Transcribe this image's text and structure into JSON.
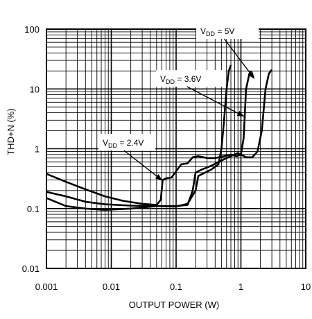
{
  "chart_data": {
    "type": "line",
    "xlabel": "OUTPUT POWER (W)",
    "ylabel": "THD+N (%)",
    "xscale": "log",
    "yscale": "log",
    "xlim": [
      0.001,
      10
    ],
    "ylim": [
      0.01,
      100
    ],
    "grid": true,
    "x_ticks": [
      {
        "value": 0.001,
        "label": "0.001"
      },
      {
        "value": 0.01,
        "label": "0.01"
      },
      {
        "value": 0.1,
        "label": "0.1"
      },
      {
        "value": 1,
        "label": "1"
      },
      {
        "value": 10,
        "label": "10"
      }
    ],
    "y_ticks": [
      {
        "value": 0.01,
        "label": "0.01"
      },
      {
        "value": 0.1,
        "label": "0.1"
      },
      {
        "value": 1,
        "label": "1"
      },
      {
        "value": 10,
        "label": "10"
      },
      {
        "value": 100,
        "label": "100"
      }
    ],
    "series": [
      {
        "points": [
          [
            0.001,
            0.38
          ],
          [
            0.002,
            0.28
          ],
          [
            0.004,
            0.21
          ],
          [
            0.008,
            0.16
          ],
          [
            0.015,
            0.135
          ],
          [
            0.03,
            0.12
          ],
          [
            0.05,
            0.115
          ],
          [
            0.058,
            0.14
          ],
          [
            0.062,
            0.3
          ],
          [
            0.07,
            0.32
          ],
          [
            0.085,
            0.33
          ],
          [
            0.1,
            0.42
          ],
          [
            0.12,
            0.55
          ],
          [
            0.15,
            0.57
          ],
          [
            0.18,
            0.72
          ],
          [
            0.22,
            0.75
          ],
          [
            0.3,
            0.7
          ],
          [
            0.4,
            0.7
          ],
          [
            0.55,
            0.75
          ],
          [
            0.7,
            0.8
          ],
          [
            0.85,
            0.75
          ],
          [
            1.0,
            0.8
          ],
          [
            1.1,
            1.5
          ],
          [
            1.2,
            10
          ],
          [
            1.35,
            18
          ],
          [
            1.45,
            20
          ]
        ]
      },
      {
        "points": [
          [
            0.001,
            0.19
          ],
          [
            0.002,
            0.16
          ],
          [
            0.004,
            0.13
          ],
          [
            0.008,
            0.118
          ],
          [
            0.02,
            0.112
          ],
          [
            0.05,
            0.11
          ],
          [
            0.1,
            0.108
          ],
          [
            0.15,
            0.12
          ],
          [
            0.2,
            0.2
          ],
          [
            0.22,
            0.35
          ],
          [
            0.28,
            0.4
          ],
          [
            0.35,
            0.45
          ],
          [
            0.45,
            0.55
          ],
          [
            0.5,
            1.0
          ],
          [
            0.55,
            3.0
          ],
          [
            0.6,
            10
          ],
          [
            0.65,
            20
          ],
          [
            0.7,
            25
          ]
        ]
      },
      {
        "points": [
          [
            0.001,
            0.15
          ],
          [
            0.002,
            0.11
          ],
          [
            0.004,
            0.1
          ],
          [
            0.008,
            0.095
          ],
          [
            0.02,
            0.1
          ],
          [
            0.05,
            0.11
          ],
          [
            0.1,
            0.11
          ],
          [
            0.15,
            0.115
          ],
          [
            0.18,
            0.2
          ],
          [
            0.2,
            0.4
          ],
          [
            0.25,
            0.45
          ],
          [
            0.35,
            0.52
          ],
          [
            0.45,
            0.6
          ],
          [
            0.6,
            0.7
          ],
          [
            0.9,
            0.85
          ],
          [
            1.2,
            0.72
          ],
          [
            1.5,
            0.72
          ],
          [
            1.8,
            0.9
          ],
          [
            2.1,
            2.0
          ],
          [
            2.4,
            10
          ],
          [
            2.7,
            18
          ],
          [
            3.0,
            21
          ]
        ]
      }
    ],
    "annotations": [
      {
        "base": "V",
        "sub": "DD",
        "rest": " = 5V",
        "target": [
          1.6,
          15
        ]
      },
      {
        "base": "V",
        "sub": "DD",
        "rest": " = 3.6V",
        "target": [
          1.1,
          3.5
        ]
      },
      {
        "base": "V",
        "sub": "DD",
        "rest": " = 2.4V",
        "target": [
          0.06,
          0.3
        ]
      }
    ]
  }
}
